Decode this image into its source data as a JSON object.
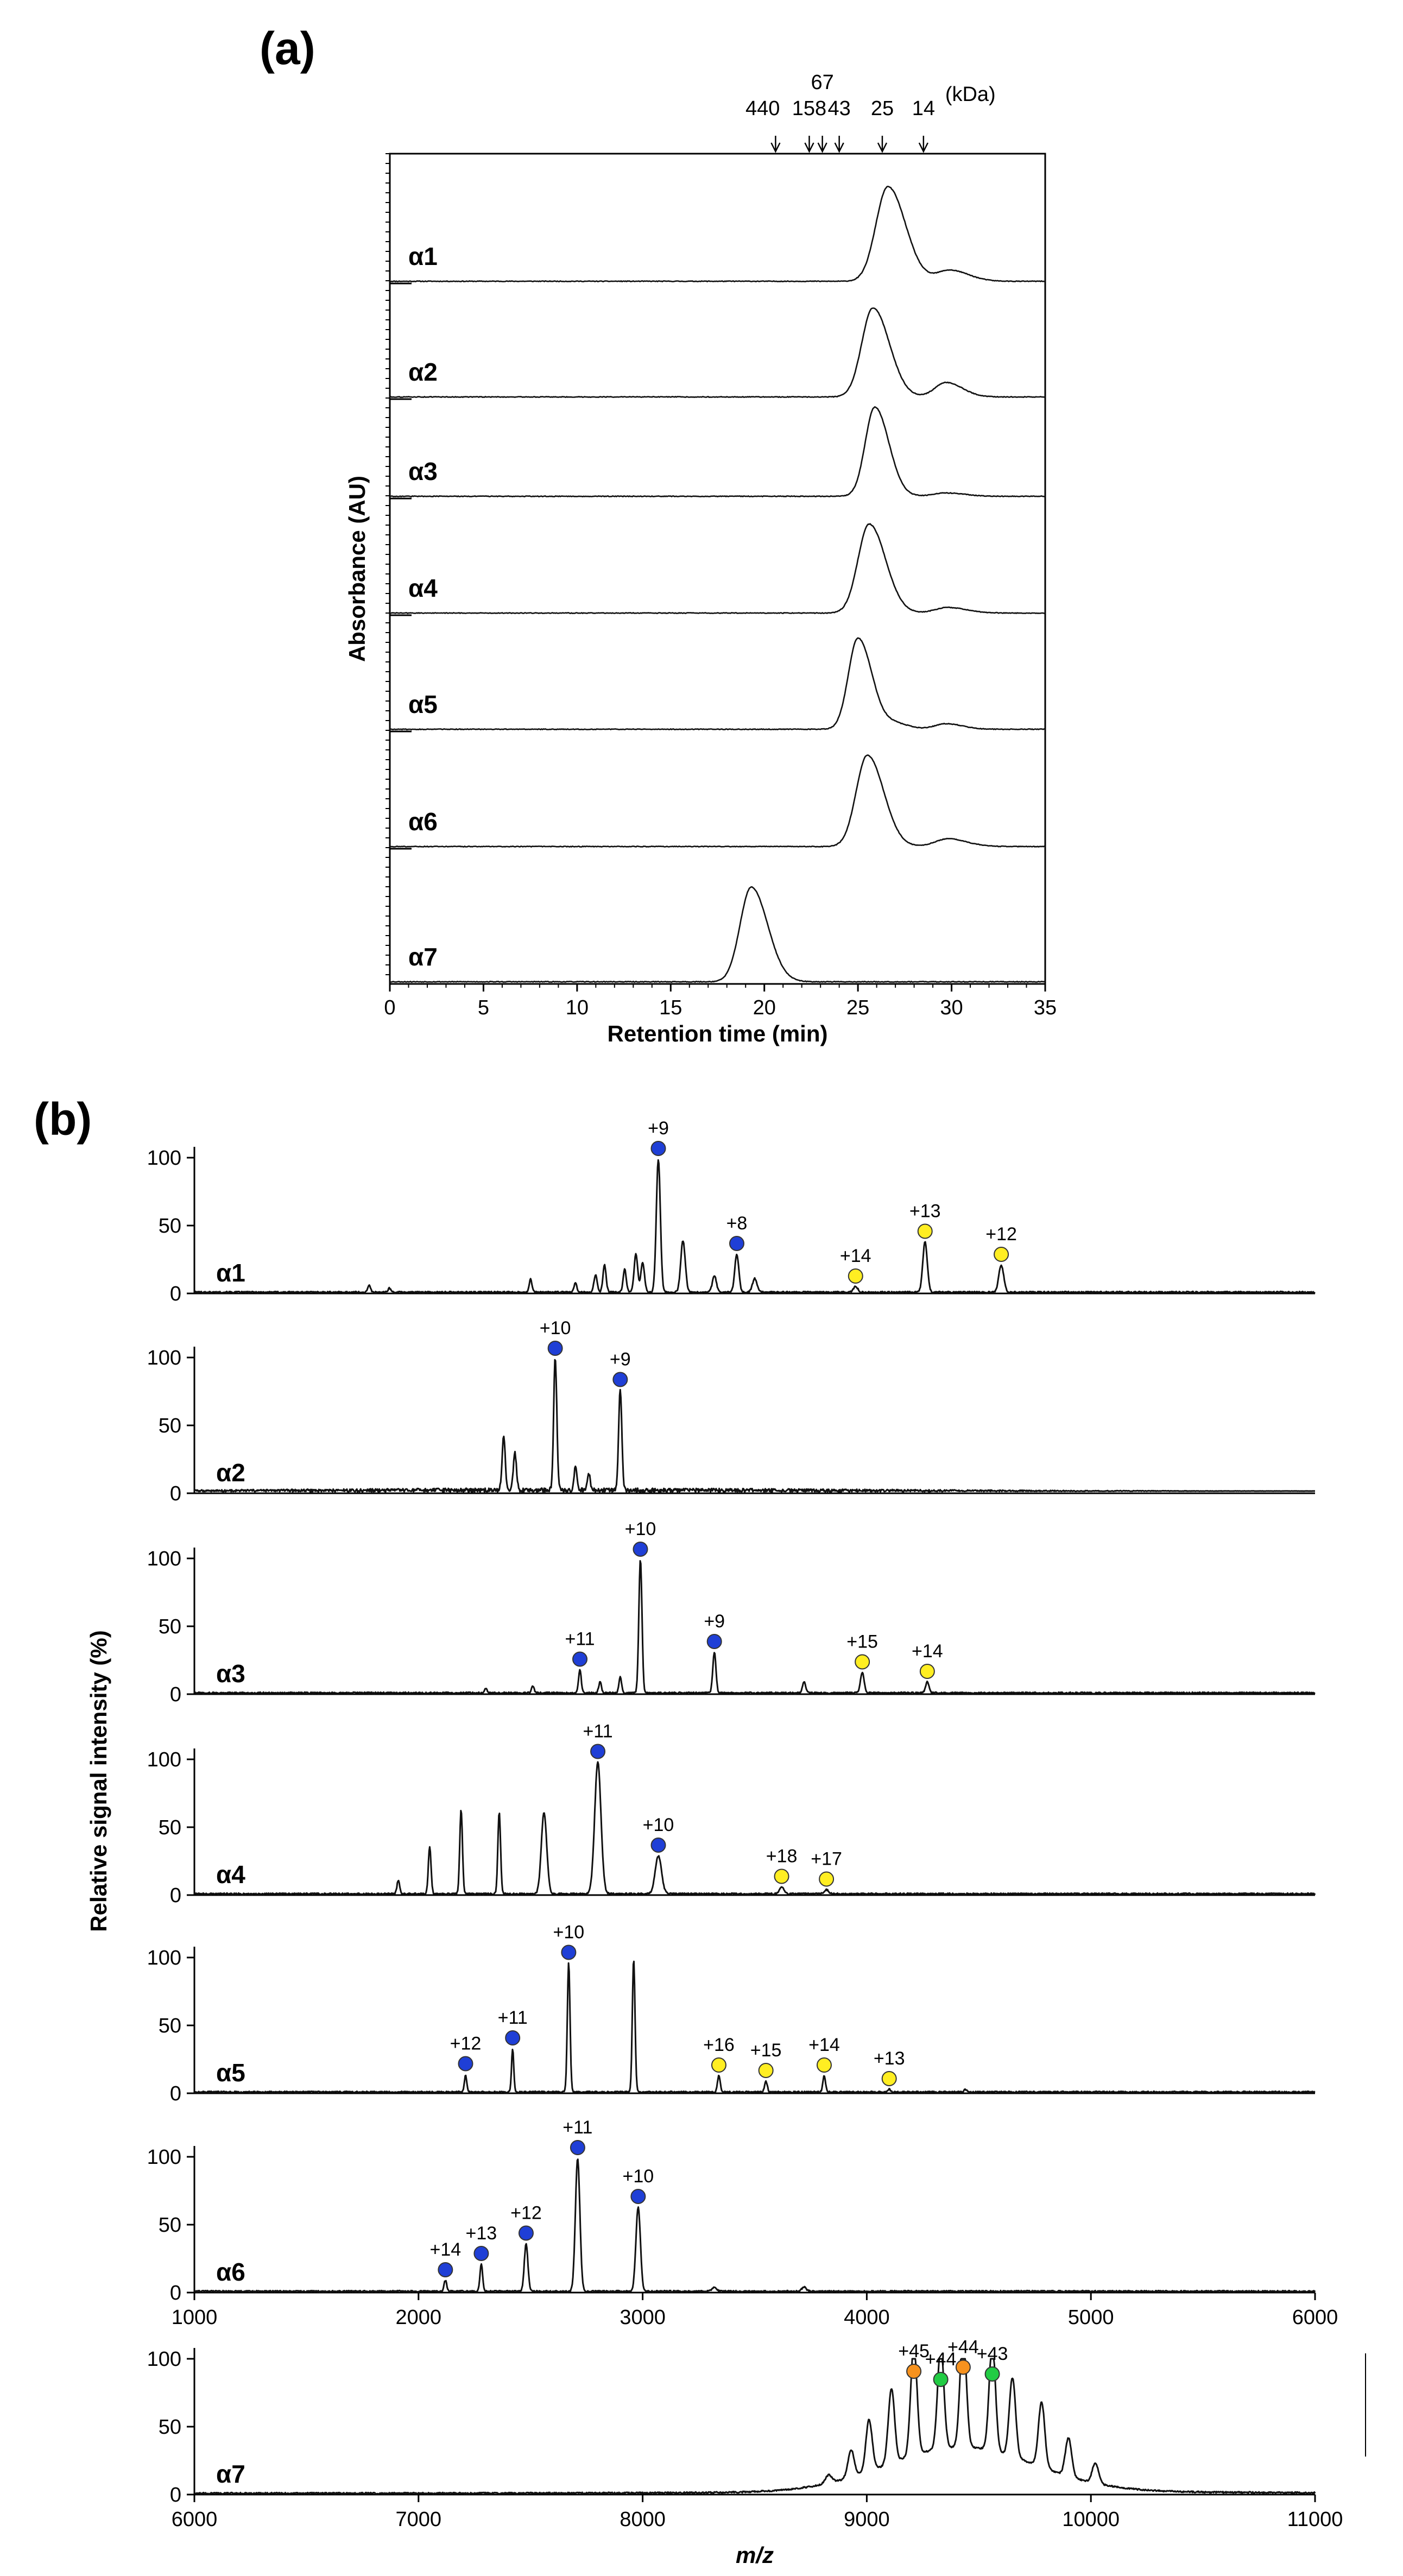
{
  "chart_data": [
    {
      "panel": "(a)",
      "type": "line",
      "title": "",
      "xlabel": "Retention time (min)",
      "ylabel": "Absorbance (AU)",
      "xlim": [
        0,
        35
      ],
      "xticks": [
        "0",
        "5",
        "10",
        "15",
        "20",
        "25",
        "30",
        "35"
      ],
      "markers_unit": "(kDa)",
      "markers": [
        {
          "label": "440",
          "x": 20.6
        },
        {
          "label": "158",
          "x": 22.4
        },
        {
          "label": "67",
          "x": 23.1
        },
        {
          "label": "43",
          "x": 24.0
        },
        {
          "label": "25",
          "x": 26.3
        },
        {
          "label": "14",
          "x": 28.5
        }
      ],
      "series": [
        {
          "name": "α1",
          "peaks": [
            {
              "x": 26.6,
              "h": 0.85,
              "w": 0.75
            },
            {
              "x": 29.9,
              "h": 0.1,
              "w": 0.8
            }
          ]
        },
        {
          "name": "α2",
          "peaks": [
            {
              "x": 25.8,
              "h": 0.8,
              "w": 0.7
            },
            {
              "x": 29.7,
              "h": 0.13,
              "w": 0.7
            }
          ]
        },
        {
          "name": "α3",
          "peaks": [
            {
              "x": 25.9,
              "h": 0.8,
              "w": 0.6
            },
            {
              "x": 29.7,
              "h": 0.03,
              "w": 0.8
            }
          ]
        },
        {
          "name": "α4",
          "peaks": [
            {
              "x": 25.6,
              "h": 0.8,
              "w": 0.7
            },
            {
              "x": 29.8,
              "h": 0.05,
              "w": 0.8
            }
          ]
        },
        {
          "name": "α5",
          "peaks": [
            {
              "x": 25.0,
              "h": 0.82,
              "w": 0.6
            },
            {
              "x": 27.0,
              "h": 0.05,
              "w": 0.6
            },
            {
              "x": 29.7,
              "h": 0.05,
              "w": 0.7
            }
          ]
        },
        {
          "name": "α6",
          "peaks": [
            {
              "x": 25.5,
              "h": 0.82,
              "w": 0.7
            },
            {
              "x": 29.8,
              "h": 0.07,
              "w": 0.8
            }
          ]
        },
        {
          "name": "α7",
          "peaks": [
            {
              "x": 19.3,
              "h": 0.85,
              "w": 0.7
            }
          ]
        }
      ]
    },
    {
      "panel": "(b)",
      "type": "line",
      "title": "",
      "xlabel": "m/z",
      "ylabel": "Relative signal intensity (%)",
      "ylim": [
        0,
        100
      ],
      "yticks": [
        "0",
        "50",
        "100"
      ],
      "xlim_top": [
        1000,
        6000
      ],
      "xticks_top": [
        "1000",
        "2000",
        "3000",
        "4000",
        "5000",
        "6000"
      ],
      "xlim_bottom": [
        6000,
        11000
      ],
      "xticks_bottom": [
        "6000",
        "7000",
        "8000",
        "9000",
        "10000",
        "11000"
      ],
      "marker_colors": {
        "blue": "#1f3fd6",
        "yellow": "#ffee22",
        "orange": "#f7921e",
        "green": "#22cc44"
      },
      "series": [
        {
          "name": "α1",
          "range": "top",
          "peaks": [
            {
              "mz": 1780,
              "y": 5,
              "w": 6
            },
            {
              "mz": 1870,
              "y": 3,
              "w": 6
            },
            {
              "mz": 2500,
              "y": 10,
              "w": 6
            },
            {
              "mz": 2700,
              "y": 7,
              "w": 6
            },
            {
              "mz": 2790,
              "y": 13,
              "w": 7
            },
            {
              "mz": 2830,
              "y": 20,
              "w": 7
            },
            {
              "mz": 2920,
              "y": 17,
              "w": 7
            },
            {
              "mz": 2970,
              "y": 28,
              "w": 8
            },
            {
              "mz": 3000,
              "y": 22,
              "w": 8
            },
            {
              "mz": 3070,
              "y": 98,
              "w": 9
            },
            {
              "mz": 3180,
              "y": 38,
              "w": 10
            },
            {
              "mz": 3320,
              "y": 12,
              "w": 9
            },
            {
              "mz": 3420,
              "y": 28,
              "w": 9
            },
            {
              "mz": 3500,
              "y": 10,
              "w": 10
            },
            {
              "mz": 3950,
              "y": 4,
              "w": 10
            },
            {
              "mz": 4260,
              "y": 37,
              "w": 10
            },
            {
              "mz": 4600,
              "y": 20,
              "w": 11
            }
          ],
          "charge_markers": [
            {
              "label": "+9",
              "mz": 3070,
              "y": 98,
              "color": "blue"
            },
            {
              "label": "+8",
              "mz": 3420,
              "y": 28,
              "color": "blue"
            },
            {
              "label": "+14",
              "mz": 3950,
              "y": 4,
              "color": "yellow"
            },
            {
              "label": "+13",
              "mz": 4260,
              "y": 37,
              "color": "yellow"
            },
            {
              "label": "+12",
              "mz": 4600,
              "y": 20,
              "color": "yellow"
            }
          ]
        },
        {
          "name": "α2",
          "range": "top",
          "peaks": [
            {
              "mz": 2380,
              "y": 40,
              "w": 7
            },
            {
              "mz": 2430,
              "y": 28,
              "w": 7
            },
            {
              "mz": 2610,
              "y": 98,
              "w": 7
            },
            {
              "mz": 2700,
              "y": 18,
              "w": 6
            },
            {
              "mz": 2760,
              "y": 12,
              "w": 6
            },
            {
              "mz": 2900,
              "y": 75,
              "w": 7
            }
          ],
          "charge_markers": [
            {
              "label": "+10",
              "mz": 2610,
              "y": 98,
              "color": "blue"
            },
            {
              "label": "+9",
              "mz": 2900,
              "y": 75,
              "color": "blue"
            }
          ]
        },
        {
          "name": "α3",
          "range": "top",
          "peaks": [
            {
              "mz": 2300,
              "y": 3,
              "w": 6
            },
            {
              "mz": 2510,
              "y": 5,
              "w": 6
            },
            {
              "mz": 2720,
              "y": 17,
              "w": 6
            },
            {
              "mz": 2810,
              "y": 8,
              "w": 6
            },
            {
              "mz": 2900,
              "y": 12,
              "w": 6
            },
            {
              "mz": 2990,
              "y": 98,
              "w": 7
            },
            {
              "mz": 3320,
              "y": 30,
              "w": 7
            },
            {
              "mz": 3720,
              "y": 8,
              "w": 7
            },
            {
              "mz": 3980,
              "y": 15,
              "w": 8
            },
            {
              "mz": 4270,
              "y": 8,
              "w": 8
            }
          ],
          "charge_markers": [
            {
              "label": "+11",
              "mz": 2720,
              "y": 17,
              "color": "blue"
            },
            {
              "label": "+10",
              "mz": 2990,
              "y": 98,
              "color": "blue"
            },
            {
              "label": "+9",
              "mz": 3320,
              "y": 30,
              "color": "blue"
            },
            {
              "label": "+15",
              "mz": 3980,
              "y": 15,
              "color": "yellow"
            },
            {
              "label": "+14",
              "mz": 4270,
              "y": 8,
              "color": "yellow"
            }
          ]
        },
        {
          "name": "α4",
          "range": "top",
          "peaks": [
            {
              "mz": 1910,
              "y": 10,
              "w": 6
            },
            {
              "mz": 2050,
              "y": 35,
              "w": 6
            },
            {
              "mz": 2190,
              "y": 62,
              "w": 6
            },
            {
              "mz": 2360,
              "y": 60,
              "w": 6
            },
            {
              "mz": 2560,
              "y": 60,
              "w": 12
            },
            {
              "mz": 2800,
              "y": 97,
              "w": 14
            },
            {
              "mz": 3070,
              "y": 28,
              "w": 14
            },
            {
              "mz": 3620,
              "y": 5,
              "w": 10
            },
            {
              "mz": 3820,
              "y": 3,
              "w": 10
            }
          ],
          "charge_markers": [
            {
              "label": "+11",
              "mz": 2800,
              "y": 97,
              "color": "blue"
            },
            {
              "label": "+10",
              "mz": 3070,
              "y": 28,
              "color": "blue"
            },
            {
              "label": "+18",
              "mz": 3620,
              "y": 5,
              "color": "yellow"
            },
            {
              "label": "+17",
              "mz": 3820,
              "y": 3,
              "color": "yellow"
            }
          ]
        },
        {
          "name": "α5",
          "range": "top",
          "peaks": [
            {
              "mz": 2210,
              "y": 13,
              "w": 5
            },
            {
              "mz": 2420,
              "y": 32,
              "w": 5
            },
            {
              "mz": 2670,
              "y": 95,
              "w": 6
            },
            {
              "mz": 2960,
              "y": 98,
              "w": 6
            },
            {
              "mz": 3340,
              "y": 12,
              "w": 6
            },
            {
              "mz": 3550,
              "y": 8,
              "w": 6
            },
            {
              "mz": 3810,
              "y": 12,
              "w": 6
            },
            {
              "mz": 4100,
              "y": 2,
              "w": 6
            },
            {
              "mz": 4440,
              "y": 2,
              "w": 6
            }
          ],
          "charge_markers": [
            {
              "label": "+12",
              "mz": 2210,
              "y": 13,
              "color": "blue"
            },
            {
              "label": "+11",
              "mz": 2420,
              "y": 32,
              "color": "blue"
            },
            {
              "label": "+10",
              "mz": 2670,
              "y": 95,
              "color": "blue"
            },
            {
              "label": "+16",
              "mz": 3340,
              "y": 12,
              "color": "yellow"
            },
            {
              "label": "+15",
              "mz": 3550,
              "y": 8,
              "color": "yellow"
            },
            {
              "label": "+14",
              "mz": 3810,
              "y": 12,
              "color": "yellow"
            },
            {
              "label": "+13",
              "mz": 4100,
              "y": 2,
              "color": "yellow"
            }
          ]
        },
        {
          "name": "α6",
          "range": "top",
          "peaks": [
            {
              "mz": 2120,
              "y": 8,
              "w": 6
            },
            {
              "mz": 2280,
              "y": 20,
              "w": 6
            },
            {
              "mz": 2480,
              "y": 35,
              "w": 8
            },
            {
              "mz": 2710,
              "y": 98,
              "w": 10
            },
            {
              "mz": 2980,
              "y": 62,
              "w": 10
            },
            {
              "mz": 3320,
              "y": 3,
              "w": 10
            },
            {
              "mz": 3720,
              "y": 3,
              "w": 10
            }
          ],
          "charge_markers": [
            {
              "label": "+14",
              "mz": 2120,
              "y": 8,
              "color": "blue"
            },
            {
              "label": "+13",
              "mz": 2280,
              "y": 20,
              "color": "blue"
            },
            {
              "label": "+12",
              "mz": 2480,
              "y": 35,
              "color": "blue"
            },
            {
              "label": "+11",
              "mz": 2710,
              "y": 98,
              "color": "blue"
            },
            {
              "label": "+10",
              "mz": 2980,
              "y": 62,
              "color": "blue"
            }
          ]
        },
        {
          "name": "α7",
          "range": "bottom",
          "envelope": {
            "center": 9420,
            "sigma": 330,
            "height": 60
          },
          "peaks": [
            {
              "mz": 8830,
              "y": 6,
              "w": 14
            },
            {
              "mz": 8930,
              "y": 20,
              "w": 14
            },
            {
              "mz": 9010,
              "y": 38,
              "w": 14
            },
            {
              "mz": 9110,
              "y": 55,
              "w": 14
            },
            {
              "mz": 9210,
              "y": 82,
              "w": 14
            },
            {
              "mz": 9330,
              "y": 76,
              "w": 14
            },
            {
              "mz": 9430,
              "y": 85,
              "w": 14
            },
            {
              "mz": 9560,
              "y": 80,
              "w": 14
            },
            {
              "mz": 9650,
              "y": 58,
              "w": 14
            },
            {
              "mz": 9780,
              "y": 48,
              "w": 14
            },
            {
              "mz": 9900,
              "y": 28,
              "w": 14
            },
            {
              "mz": 10020,
              "y": 15,
              "w": 14
            }
          ],
          "charge_markers": [
            {
              "label": "+45",
              "mz": 9210,
              "y": 82,
              "color": "orange"
            },
            {
              "label": "+44",
              "mz": 9330,
              "y": 76,
              "color": "green"
            },
            {
              "label": "+44",
              "mz": 9430,
              "y": 85,
              "color": "orange"
            },
            {
              "label": "+43",
              "mz": 9560,
              "y": 80,
              "color": "green"
            }
          ]
        }
      ]
    }
  ]
}
